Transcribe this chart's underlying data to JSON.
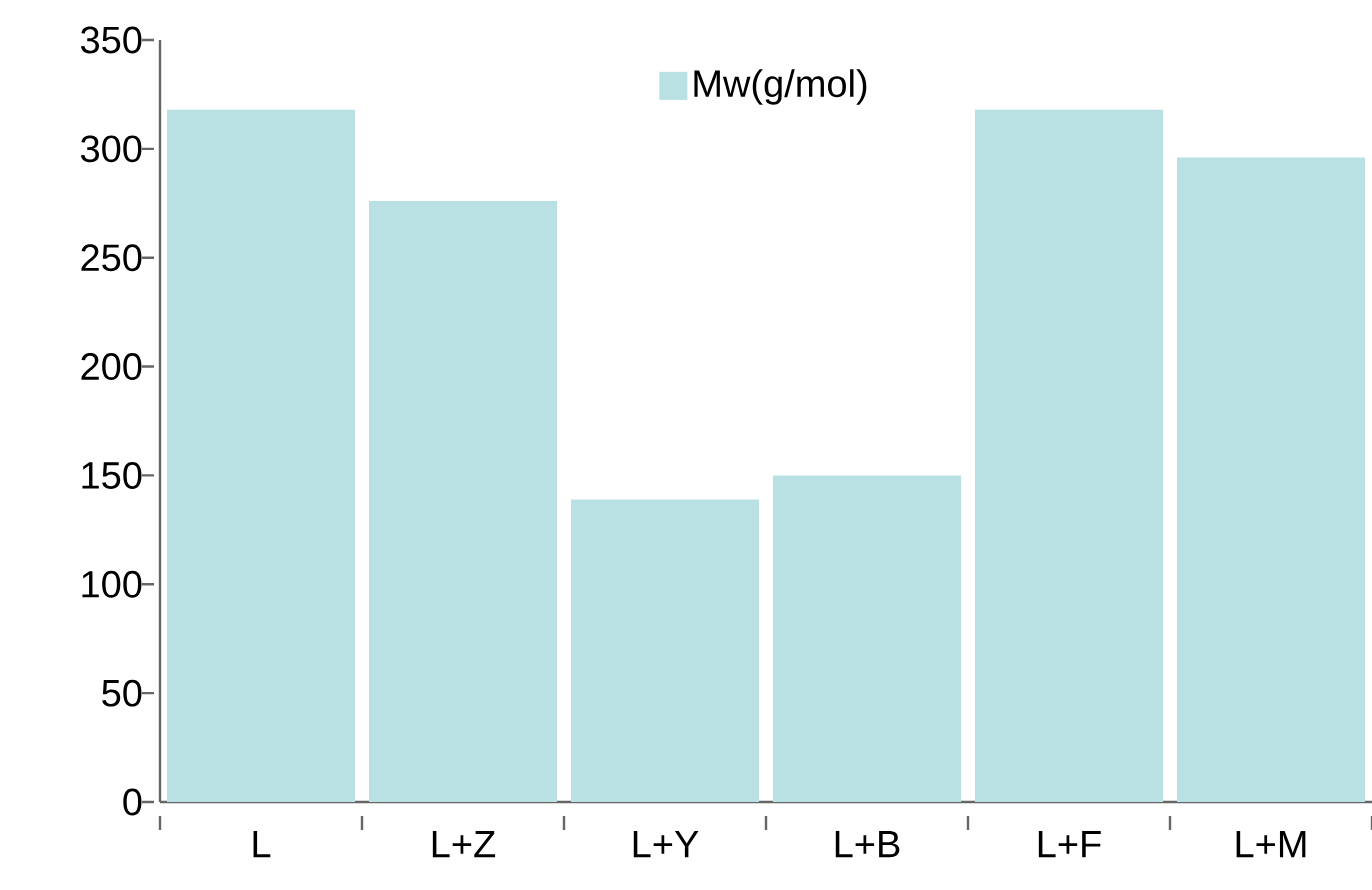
{
  "chart_data": {
    "type": "bar",
    "categories": [
      "L",
      "L+Z",
      "L+Y",
      "L+B",
      "L+F",
      "L+M"
    ],
    "series": [
      {
        "name": "Mw(g/mol)",
        "color": "#b9e0e3",
        "values": [
          318,
          276,
          139,
          150,
          318,
          296
        ]
      }
    ],
    "ylim": [
      0,
      350
    ],
    "yticks": [
      0,
      50,
      100,
      150,
      200,
      250,
      300,
      350
    ],
    "grid": false,
    "legend": "top"
  }
}
